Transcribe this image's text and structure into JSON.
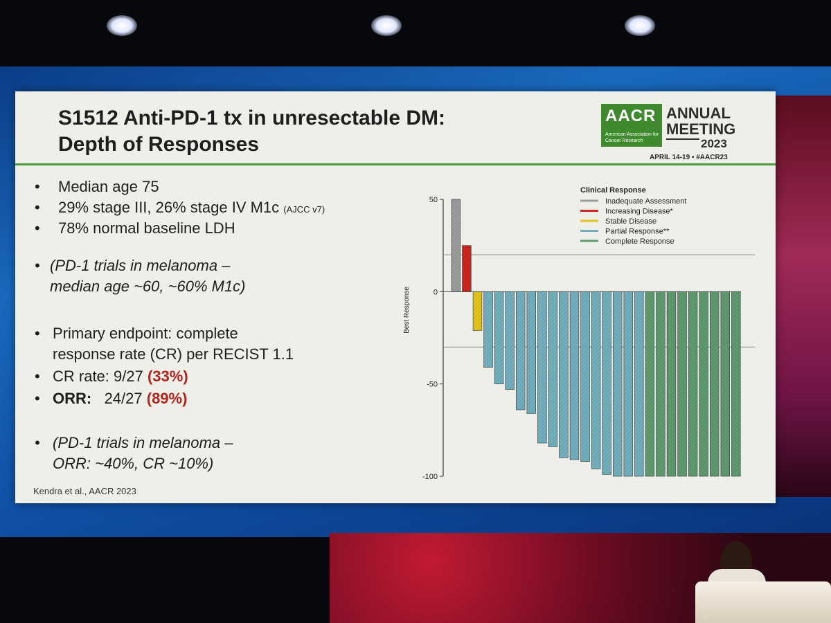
{
  "slide": {
    "title_line1": "S1512 Anti-PD-1 tx in unresectable DM:",
    "title_line2": "Depth of Responses",
    "logo_text": "AACR",
    "logo_sub": "American Association for Cancer Research",
    "meeting_line1": "ANNUAL",
    "meeting_line2": "MEETING",
    "meeting_year": "2023",
    "meeting_dates": "APRIL 14-19 • #AACR23",
    "bullets": {
      "b1": "Median age 75",
      "b2": "29% stage III, 26% stage IV M1c",
      "b2_small": "(AJCC v7)",
      "b3": "78% normal baseline LDH",
      "b4_line1": "(PD-1 trials in melanoma –",
      "b4_line2": "median age ~60, ~60% M1c)",
      "b5_line1": "Primary endpoint: complete",
      "b5_line2": "response rate (CR) per RECIST 1.1",
      "b6_prefix": "CR rate: 9/27",
      "b6_pct": "(33%)",
      "b7_label": "ORR:",
      "b7_value": "24/27",
      "b7_pct": "(89%)",
      "b8_line1": "(PD-1 trials in melanoma –",
      "b8_line2": "ORR: ~40%, CR ~10%)"
    },
    "bullet_symbol": "•",
    "footnote": "Kendra et al., AACR 2023"
  },
  "chart_data": {
    "type": "bar",
    "ylabel": "Best Response",
    "ylim": [
      -100,
      50
    ],
    "yticks": [
      50,
      0,
      -50,
      -100
    ],
    "reference_lines": [
      20,
      -30
    ],
    "legend_title": "Clinical Response",
    "legend_position": "top-right",
    "categories_legend": [
      {
        "name": "Inadequate Assessment",
        "color": "#9c9c9c"
      },
      {
        "name": "Increasing Disease*",
        "color": "#c8261f"
      },
      {
        "name": "Stable Disease",
        "color": "#e2c31c"
      },
      {
        "name": "Partial Response**",
        "color": "#73aebc"
      },
      {
        "name": "Complete Response",
        "color": "#5f9a6e"
      }
    ],
    "bars": [
      {
        "value": 50,
        "category": 0
      },
      {
        "value": 25,
        "category": 1
      },
      {
        "value": -21,
        "category": 2
      },
      {
        "value": -41,
        "category": 3
      },
      {
        "value": -50,
        "category": 3
      },
      {
        "value": -53,
        "category": 3
      },
      {
        "value": -64,
        "category": 3
      },
      {
        "value": -66,
        "category": 3
      },
      {
        "value": -82,
        "category": 3
      },
      {
        "value": -84,
        "category": 3
      },
      {
        "value": -90,
        "category": 3
      },
      {
        "value": -91,
        "category": 3
      },
      {
        "value": -92,
        "category": 3
      },
      {
        "value": -96,
        "category": 3
      },
      {
        "value": -99,
        "category": 3
      },
      {
        "value": -100,
        "category": 3
      },
      {
        "value": -100,
        "category": 3
      },
      {
        "value": -100,
        "category": 3
      },
      {
        "value": -100,
        "category": 4
      },
      {
        "value": -100,
        "category": 4
      },
      {
        "value": -100,
        "category": 4
      },
      {
        "value": -100,
        "category": 4
      },
      {
        "value": -100,
        "category": 4
      },
      {
        "value": -100,
        "category": 4
      },
      {
        "value": -100,
        "category": 4
      },
      {
        "value": -100,
        "category": 4
      },
      {
        "value": -100,
        "category": 4
      }
    ]
  }
}
